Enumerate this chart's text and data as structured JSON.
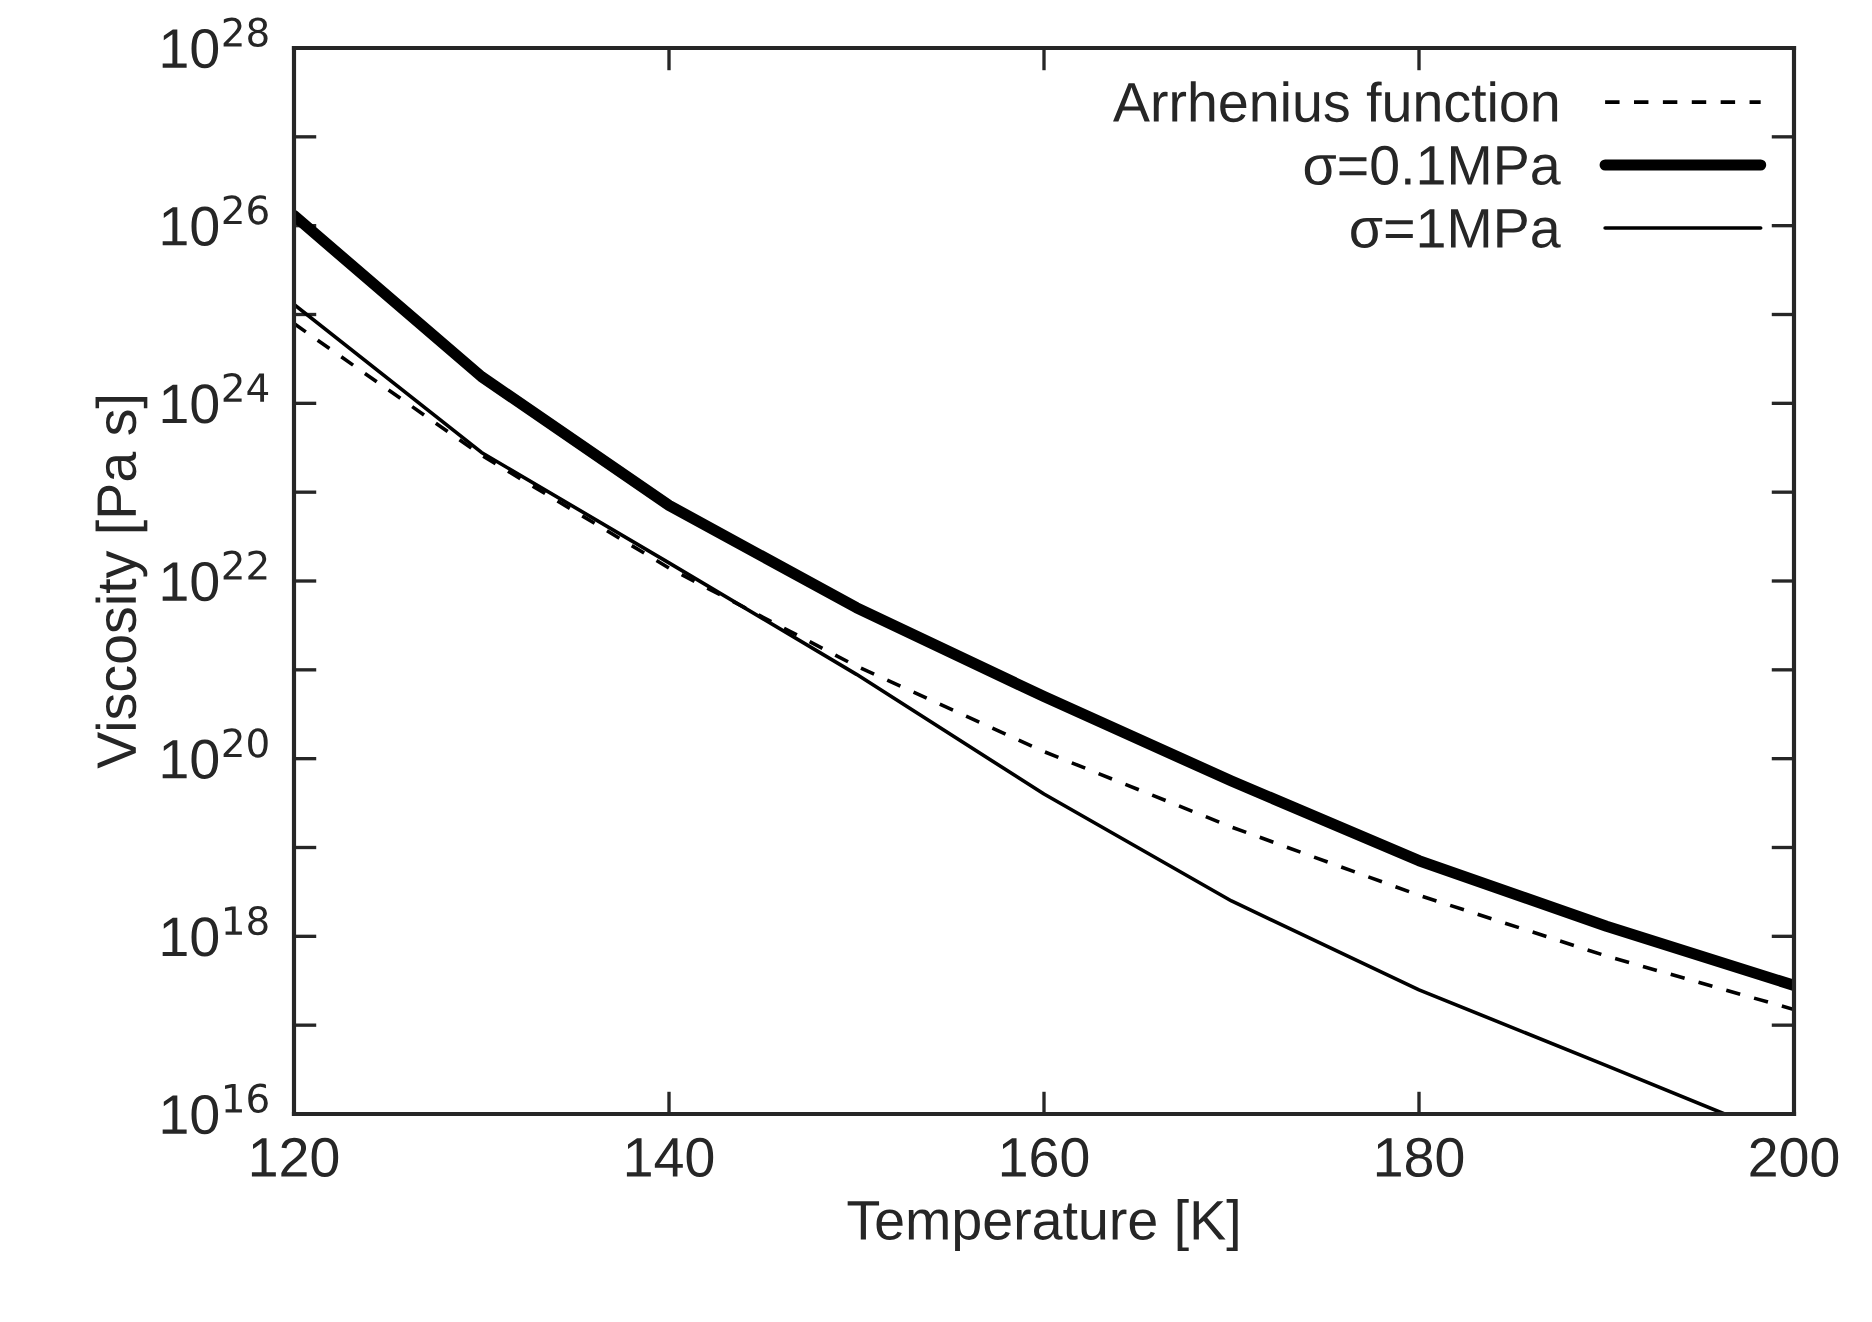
{
  "chart_data": {
    "type": "line",
    "xlabel": "Temperature [K]",
    "ylabel": "Viscosity [Pa s]",
    "log": "y",
    "xlim": [
      120,
      200
    ],
    "xticks": [
      120,
      140,
      160,
      180,
      200
    ],
    "ylim": [
      1e+16,
      1e+28
    ],
    "yticks": [
      {
        "value": 1e+16,
        "label": "10$^{16}$"
      },
      {
        "value": 1e+17,
        "label": null
      },
      {
        "value": 1e+18,
        "label": "10$^{18}$"
      },
      {
        "value": 1e+19,
        "label": null
      },
      {
        "value": 1e+20,
        "label": "10$^{20}$"
      },
      {
        "value": 1e+21,
        "label": null
      },
      {
        "value": 1e+22,
        "label": "10$^{22}$"
      },
      {
        "value": 1e+23,
        "label": null
      },
      {
        "value": 1e+24,
        "label": "10$^{24}$"
      },
      {
        "value": 1e+25,
        "label": null
      },
      {
        "value": 1e+26,
        "label": "10$^{26}$"
      },
      {
        "value": 1e+27,
        "label": null
      },
      {
        "value": 1e+28,
        "label": "10$^{28}$"
      }
    ],
    "grid": false,
    "legend": "top right",
    "series": [
      {
        "name": "Arrhenius function",
        "color": "#000000",
        "line_style": "dashed",
        "x": [
          120,
          130,
          140,
          150,
          160,
          170,
          180,
          190,
          200
        ],
        "values": [
          7.9e+24,
          2.6e+23,
          1.4e+22,
          1.1e+21,
          1.2e+20,
          1.7e+19,
          2.9e+18,
          6e+17,
          1.5e+17
        ]
      },
      {
        "name": "σ=0.1MPa",
        "color": "#000000",
        "line_style": "solid",
        "x": [
          120,
          130,
          140,
          150,
          160,
          170,
          180,
          190,
          200
        ],
        "values": [
          1.3e+26,
          2e+24,
          7.1e+22,
          5e+21,
          5e+20,
          5.6e+19,
          7.1e+18,
          1.3e+18,
          2.8e+17
        ]
      },
      {
        "name": "σ=1MPa",
        "color": "#000000",
        "line_style": "solid",
        "x": [
          120,
          130,
          140,
          150,
          160,
          170,
          180,
          190,
          196.3
        ],
        "values": [
          1.3e+25,
          2.8e+23,
          1.6e+22,
          8.9e+20,
          4e+19,
          2.5e+18,
          2.5e+17,
          3.5e+16,
          1e+16
        ]
      }
    ]
  }
}
